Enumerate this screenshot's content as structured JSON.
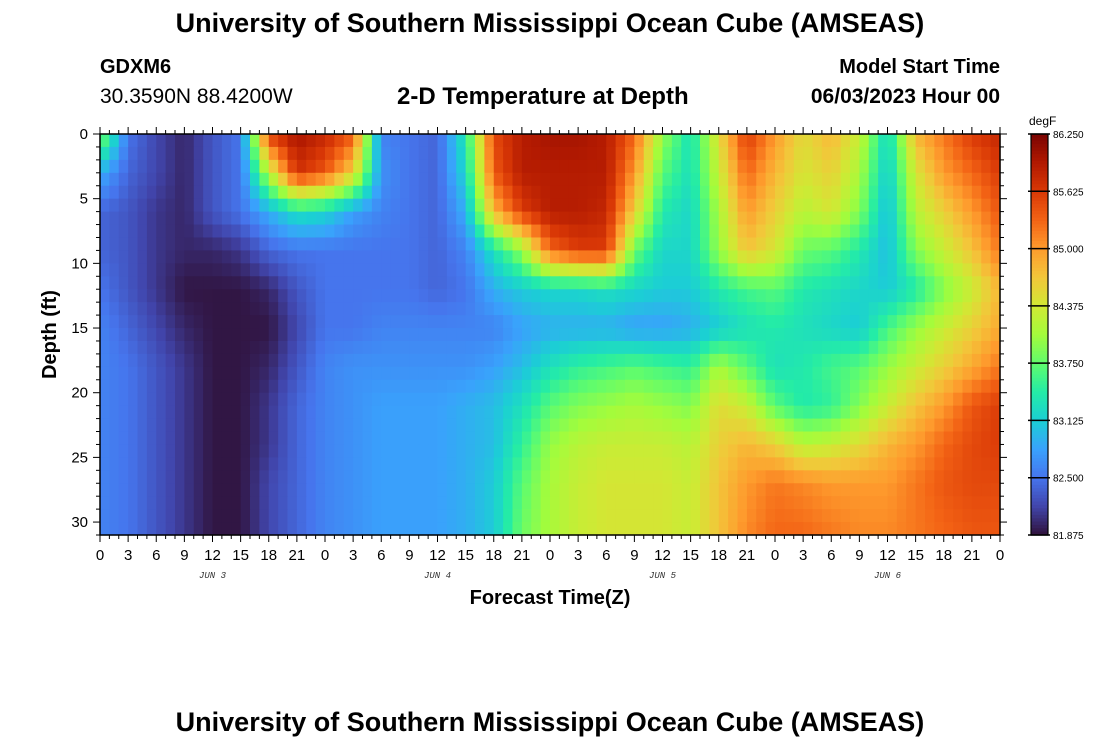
{
  "title": "University of Southern Mississippi Ocean Cube (AMSEAS)",
  "station": {
    "name": "GDXM6",
    "coords": "30.3590N  88.4200W"
  },
  "subtitle": "2-D Temperature at Depth",
  "model": {
    "label": "Model Start Time",
    "start": "06/03/2023 Hour 00"
  },
  "footer_title": "University of Southern Mississippi Ocean Cube (AMSEAS)",
  "colors": {
    "colormap": [
      "#30123b",
      "#4145ab",
      "#4675ed",
      "#39a2fc",
      "#1bcfd4",
      "#24eca6",
      "#61fc6c",
      "#a4fc3b",
      "#d1e834",
      "#f3c63a",
      "#fe9b2d",
      "#f36315",
      "#d93806",
      "#b11901",
      "#7a0402"
    ]
  },
  "chart_data": {
    "type": "heatmap",
    "xlabel": "Forecast Time(Z)",
    "ylabel": "Depth (ft)",
    "x_hours_range": [
      0,
      96
    ],
    "x_tick_labels": [
      "0",
      "3",
      "6",
      "9",
      "12",
      "15",
      "18",
      "21",
      "0",
      "3",
      "6",
      "9",
      "12",
      "15",
      "18",
      "21",
      "0",
      "3",
      "6",
      "9",
      "12",
      "15",
      "18",
      "21",
      "0",
      "3",
      "6",
      "9",
      "12",
      "15",
      "18",
      "21",
      "0"
    ],
    "day_labels": [
      "JUN 3",
      "JUN 4",
      "JUN 5",
      "JUN 6"
    ],
    "y_ticks": [
      0,
      5,
      10,
      15,
      20,
      25,
      30
    ],
    "ylim": [
      0,
      31
    ],
    "colorbar": {
      "unit": "degF",
      "range": [
        81.875,
        86.25
      ],
      "ticks": [
        "86.250",
        "85.625",
        "85.000",
        "84.375",
        "83.750",
        "83.125",
        "82.500",
        "81.875"
      ]
    },
    "depths_ft": [
      0,
      3,
      6,
      9,
      12,
      15,
      18,
      21,
      24,
      27,
      31
    ],
    "hours": [
      0,
      3,
      6,
      9,
      12,
      15,
      18,
      21,
      24,
      27,
      30,
      33,
      36,
      39,
      42,
      45,
      48,
      51,
      54,
      57,
      60,
      63,
      66,
      69,
      72,
      75,
      78,
      81,
      84,
      87,
      90,
      93,
      96
    ],
    "values_degF": [
      [
        84.0,
        82.5,
        82.2,
        82.0,
        82.3,
        82.5,
        85.6,
        86.0,
        85.8,
        85.4,
        82.6,
        82.5,
        82.4,
        83.4,
        85.5,
        85.9,
        86.0,
        86.0,
        85.9,
        85.3,
        84.0,
        83.3,
        84.5,
        85.6,
        85.0,
        84.5,
        84.8,
        84.3,
        83.2,
        84.8,
        85.2,
        85.6,
        85.8
      ],
      [
        82.9,
        82.4,
        82.2,
        82.0,
        82.3,
        82.5,
        84.2,
        85.7,
        85.4,
        84.6,
        82.7,
        82.5,
        82.4,
        83.2,
        85.4,
        85.9,
        85.9,
        85.9,
        85.9,
        85.0,
        83.7,
        83.3,
        84.3,
        85.3,
        84.8,
        84.4,
        84.6,
        84.1,
        83.1,
        84.4,
        85.0,
        85.3,
        85.6
      ],
      [
        82.4,
        82.3,
        82.1,
        82.0,
        82.3,
        82.5,
        82.9,
        83.3,
        83.2,
        82.8,
        82.6,
        82.5,
        82.4,
        82.9,
        84.8,
        85.6,
        85.9,
        85.9,
        85.8,
        84.6,
        83.4,
        83.2,
        84.1,
        85.0,
        84.6,
        84.2,
        84.4,
        83.9,
        83.0,
        84.2,
        84.6,
        85.0,
        85.4
      ],
      [
        82.4,
        82.3,
        82.1,
        82.0,
        82.0,
        82.1,
        82.4,
        82.5,
        82.5,
        82.5,
        82.5,
        82.5,
        82.4,
        82.6,
        83.3,
        84.0,
        85.3,
        85.6,
        85.6,
        83.8,
        83.2,
        83.2,
        84.0,
        84.7,
        84.4,
        83.8,
        83.7,
        83.4,
        83.0,
        83.9,
        84.3,
        84.7,
        85.2
      ],
      [
        82.5,
        82.3,
        82.1,
        81.9,
        81.9,
        81.9,
        82.0,
        82.3,
        82.5,
        82.5,
        82.5,
        82.5,
        82.4,
        82.5,
        82.9,
        83.1,
        83.2,
        83.2,
        83.3,
        83.2,
        83.1,
        83.1,
        83.4,
        83.6,
        83.7,
        83.4,
        83.3,
        83.2,
        83.1,
        83.4,
        83.9,
        84.3,
        84.8
      ],
      [
        82.6,
        82.4,
        82.2,
        82.0,
        81.9,
        81.9,
        81.9,
        82.2,
        82.5,
        82.5,
        82.6,
        82.6,
        82.6,
        82.6,
        82.6,
        82.8,
        82.9,
        82.9,
        82.9,
        82.8,
        82.8,
        82.9,
        83.1,
        83.3,
        83.4,
        83.3,
        83.2,
        83.1,
        83.6,
        84.0,
        84.3,
        84.6,
        84.9
      ],
      [
        82.6,
        82.5,
        82.3,
        82.1,
        81.9,
        81.9,
        82.0,
        82.3,
        82.6,
        82.7,
        82.7,
        82.7,
        82.7,
        82.7,
        82.8,
        83.0,
        83.3,
        83.5,
        83.6,
        83.7,
        83.6,
        83.5,
        84.1,
        83.7,
        83.3,
        83.4,
        83.6,
        83.7,
        84.0,
        84.3,
        84.6,
        84.9,
        85.2
      ],
      [
        82.6,
        82.5,
        82.3,
        82.1,
        81.9,
        81.9,
        82.1,
        82.4,
        82.6,
        82.7,
        82.8,
        82.8,
        82.8,
        82.9,
        83.0,
        83.3,
        83.7,
        83.9,
        84.0,
        84.1,
        84.0,
        83.9,
        84.5,
        84.3,
        83.7,
        83.4,
        83.5,
        83.9,
        84.3,
        84.7,
        85.0,
        85.4,
        85.6
      ],
      [
        82.6,
        82.5,
        82.3,
        82.1,
        81.9,
        81.9,
        82.1,
        82.4,
        82.6,
        82.7,
        82.8,
        82.8,
        82.8,
        82.9,
        83.0,
        83.5,
        84.0,
        84.2,
        84.3,
        84.3,
        84.3,
        84.2,
        84.6,
        84.8,
        84.6,
        84.2,
        84.3,
        84.5,
        84.8,
        85.0,
        85.3,
        85.5,
        85.6
      ],
      [
        82.6,
        82.5,
        82.3,
        82.1,
        81.9,
        81.9,
        82.2,
        82.4,
        82.6,
        82.7,
        82.8,
        82.8,
        82.8,
        82.9,
        83.1,
        83.7,
        84.1,
        84.3,
        84.4,
        84.4,
        84.4,
        84.3,
        84.7,
        85.0,
        85.2,
        85.1,
        85.0,
        85.0,
        85.0,
        85.2,
        85.4,
        85.5,
        85.5
      ],
      [
        82.6,
        82.5,
        82.3,
        82.1,
        81.9,
        81.9,
        82.2,
        82.4,
        82.6,
        82.7,
        82.8,
        82.8,
        82.8,
        82.9,
        83.1,
        83.8,
        84.1,
        84.3,
        84.4,
        84.4,
        84.4,
        84.3,
        84.7,
        85.1,
        85.3,
        85.3,
        85.2,
        85.1,
        85.1,
        85.2,
        85.3,
        85.4,
        85.4
      ]
    ]
  }
}
